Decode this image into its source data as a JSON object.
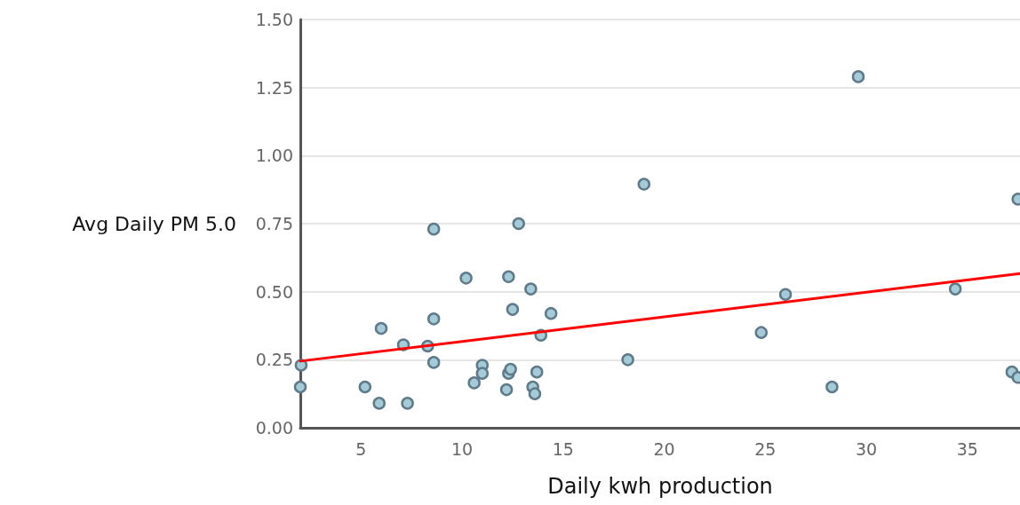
{
  "chart_data": {
    "type": "scatter",
    "xlabel": "Daily kwh production",
    "ylabel": "Avg Daily PM 5.0",
    "xlim": [
      2,
      37.6
    ],
    "xticks": [
      5,
      10,
      15,
      20,
      25,
      30,
      35
    ],
    "ylim": [
      0,
      1.5
    ],
    "yticks": [
      {
        "value": 0,
        "label": "0.00"
      },
      {
        "value": 0.25,
        "label": "0.25"
      },
      {
        "value": 0.5,
        "label": "0.50"
      },
      {
        "value": 0.75,
        "label": "0.75"
      },
      {
        "value": 1,
        "label": "1.00"
      },
      {
        "value": 1.25,
        "label": "1.25"
      },
      {
        "value": 1.5,
        "label": "1.50"
      }
    ],
    "grid": "y",
    "marker": "circle",
    "series": [
      {
        "color": "#a6cbd8",
        "x": [
          2.04,
          2.0,
          5.2,
          5.9,
          6.0,
          7.1,
          7.3,
          8.3,
          8.6,
          8.6,
          8.6,
          10.2,
          10.6,
          11.0,
          11.0,
          12.2,
          12.3,
          12.3,
          12.4,
          12.5,
          12.8,
          13.4,
          13.5,
          13.6,
          13.7,
          13.9,
          14.4,
          18.2,
          19.0,
          24.8,
          26.0,
          28.3,
          29.6,
          34.4,
          37.2,
          37.5,
          37.5
        ],
        "values": [
          0.23,
          0.15,
          0.15,
          0.09,
          0.365,
          0.305,
          0.09,
          0.3,
          0.73,
          0.4,
          0.24,
          0.55,
          0.165,
          0.23,
          0.2,
          0.14,
          0.555,
          0.2,
          0.215,
          0.435,
          0.75,
          0.51,
          0.15,
          0.125,
          0.205,
          0.34,
          0.42,
          0.25,
          0.895,
          0.35,
          0.49,
          0.15,
          1.29,
          0.51,
          0.205,
          0.185,
          0.84
        ]
      },
      {
        "type": "line",
        "color": "#ff0000",
        "x": [
          2,
          37.6
        ],
        "values": [
          0.245,
          0.567
        ],
        "marker": "none",
        "line_style": "solid"
      }
    ]
  }
}
